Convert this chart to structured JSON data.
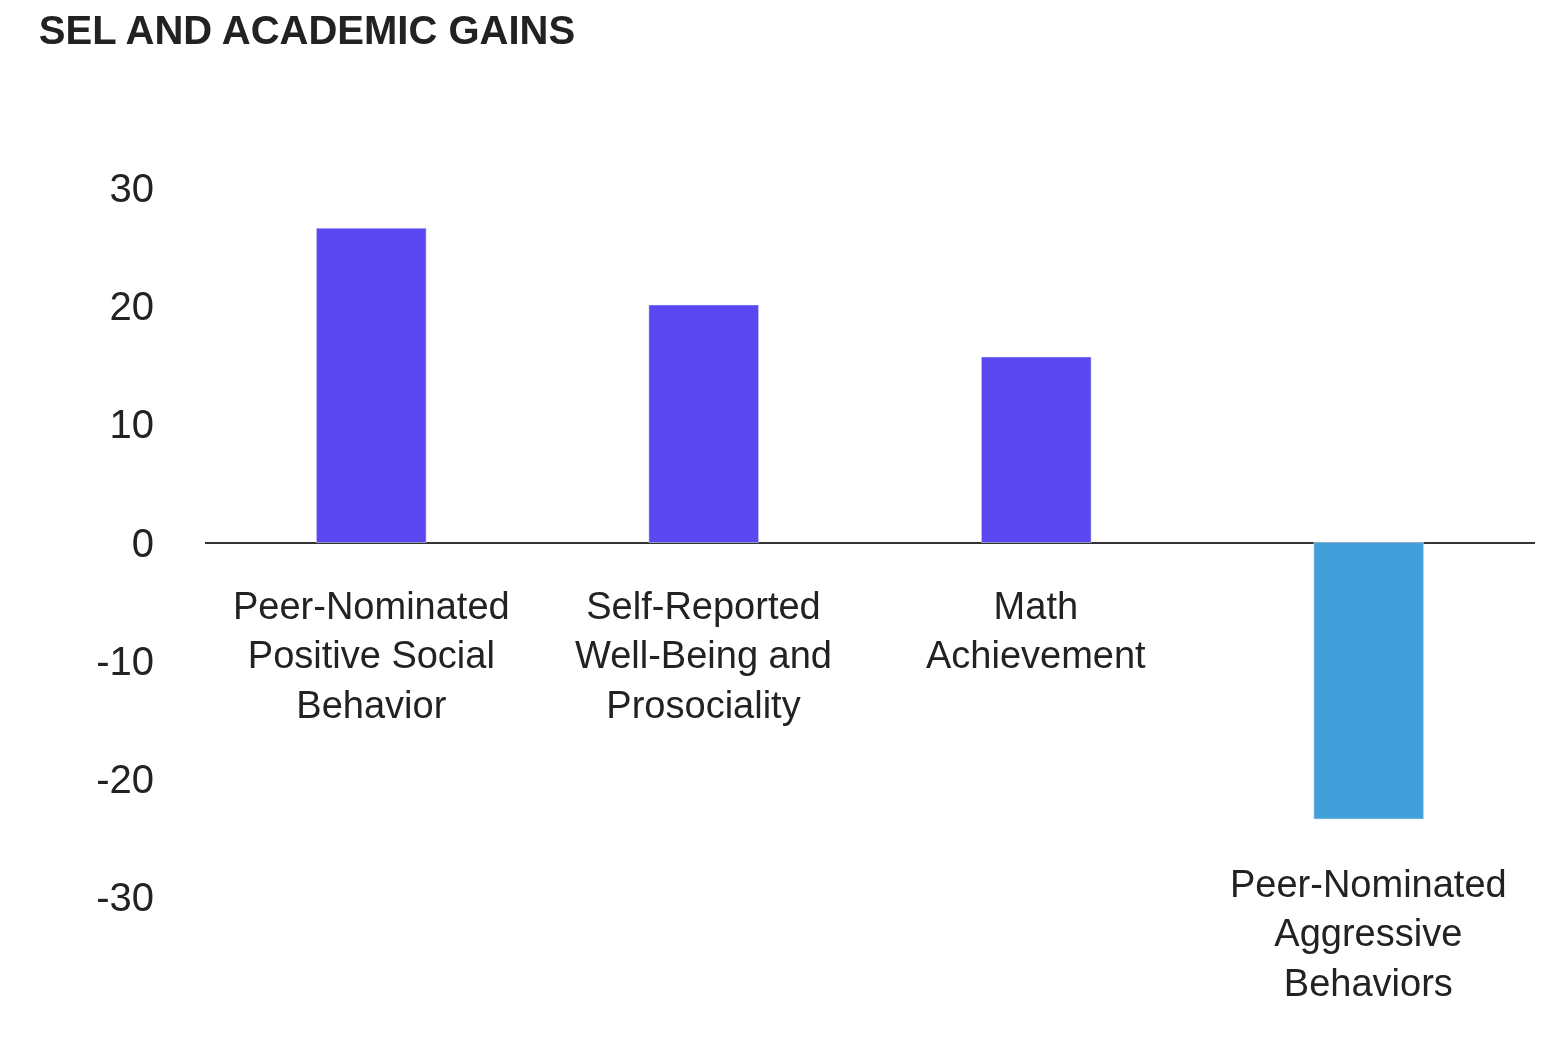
{
  "chart_data": {
    "type": "bar",
    "title": "SEL AND ACADEMIC GAINS",
    "categories": [
      "Peer-Nominated\nPositive Social\nBehavior",
      "Self-Reported\nWell-Being and\nProsociality",
      "Math\nAchievement",
      "Peer-Nominated\nAggressive\nBehaviors"
    ],
    "values": [
      26.6,
      20.1,
      15.7,
      -23.4
    ],
    "colors": [
      "#5b47f0",
      "#5b47f0",
      "#5b47f0",
      "#419fd9"
    ],
    "ylim": [
      -30,
      30
    ],
    "yticks": [
      -30,
      -20,
      -10,
      0,
      10,
      20,
      30
    ]
  }
}
